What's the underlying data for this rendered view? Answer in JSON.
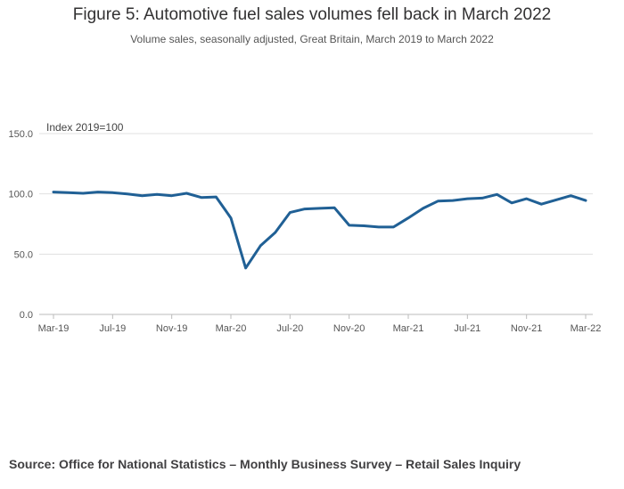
{
  "title": "Figure 5: Automotive fuel sales volumes fell back in March 2022",
  "subtitle": "Volume sales, seasonally adjusted, Great Britain, March 2019 to March 2022",
  "source": "Source: Office for National Statistics – Monthly Business Survey – Retail Sales Inquiry",
  "colors": {
    "line": "#206095",
    "grid": "#e0e0e0",
    "axis": "#bbbbbb"
  },
  "chart_data": {
    "type": "line",
    "ylabel": "Index 2019=100",
    "ylim": [
      0,
      150
    ],
    "yticks": [
      "0.0",
      "50.0",
      "100.0",
      "150.0"
    ],
    "ytick_values": [
      0,
      50,
      100,
      150
    ],
    "grid": true,
    "xtick_labels": [
      "Mar-19",
      "Jul-19",
      "Nov-19",
      "Mar-20",
      "Jul-20",
      "Nov-20",
      "Mar-21",
      "Jul-21",
      "Nov-21",
      "Mar-22"
    ],
    "xtick_index": [
      0,
      4,
      8,
      12,
      16,
      20,
      24,
      28,
      32,
      36
    ],
    "series": [
      {
        "x": [
          "Mar-19",
          "Apr-19",
          "May-19",
          "Jun-19",
          "Jul-19",
          "Aug-19",
          "Sep-19",
          "Oct-19",
          "Nov-19",
          "Dec-19",
          "Jan-20",
          "Feb-20",
          "Mar-20",
          "Apr-20",
          "May-20",
          "Jun-20",
          "Jul-20",
          "Aug-20",
          "Sep-20",
          "Oct-20",
          "Nov-20",
          "Dec-20",
          "Jan-21",
          "Feb-21",
          "Mar-21",
          "Apr-21",
          "May-21",
          "Jun-21",
          "Jul-21",
          "Aug-21",
          "Sep-21",
          "Oct-21",
          "Nov-21",
          "Dec-21",
          "Jan-22",
          "Feb-22",
          "Mar-22"
        ],
        "values": [
          101.5,
          101.0,
          100.5,
          101.5,
          101.0,
          100.0,
          98.5,
          99.5,
          98.5,
          100.5,
          97.0,
          97.5,
          80.0,
          38.5,
          57.0,
          68.0,
          84.5,
          87.5,
          88.0,
          88.5,
          74.0,
          73.5,
          72.5,
          72.5,
          80.0,
          88.0,
          94.0,
          94.5,
          96.0,
          96.5,
          99.5,
          92.5,
          96.0,
          91.5,
          95.0,
          98.5,
          94.5
        ]
      }
    ]
  }
}
